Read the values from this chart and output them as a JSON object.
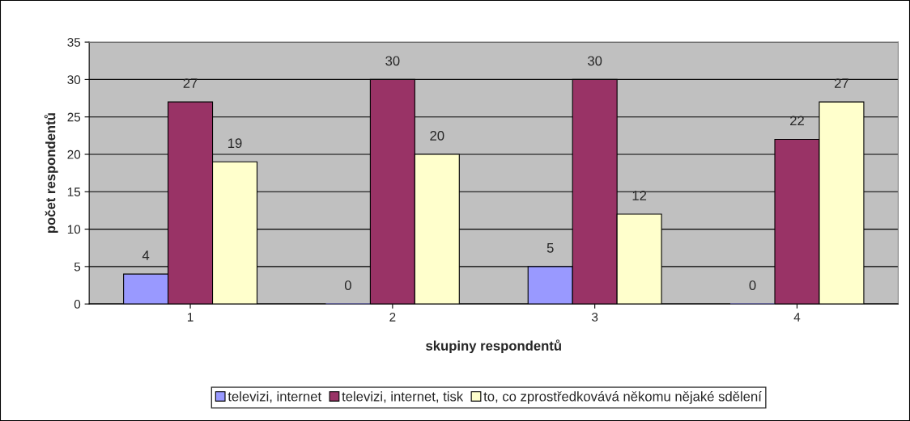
{
  "chart_data": {
    "type": "bar",
    "xlabel": "skupiny respondentů",
    "ylabel": "počet respondentů",
    "categories": [
      "1",
      "2",
      "3",
      "4"
    ],
    "series": [
      {
        "name": "televizi, internet",
        "color": "#9999ff",
        "values": [
          4,
          0,
          5,
          0
        ]
      },
      {
        "name": "televizi, internet, tisk",
        "color": "#993366",
        "values": [
          27,
          30,
          30,
          22
        ]
      },
      {
        "name": "to, co zprostředkovává někomu nějaké sdělení",
        "color": "#ffffcc",
        "values": [
          19,
          20,
          12,
          27
        ]
      }
    ],
    "ylim": [
      0,
      35
    ],
    "yticks": [
      0,
      5,
      10,
      15,
      20,
      25,
      30,
      35
    ],
    "grid": "y",
    "legend": "bottom",
    "data_labels": true
  }
}
